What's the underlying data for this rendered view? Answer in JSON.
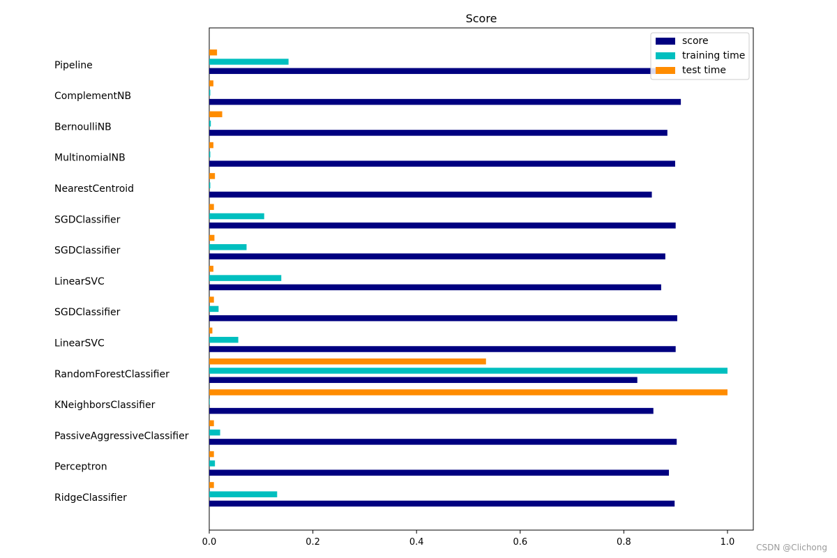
{
  "chart_data": {
    "type": "bar",
    "orientation": "horizontal",
    "title": "Score",
    "xlabel": "",
    "ylabel": "",
    "xlim": [
      0,
      1.05
    ],
    "xticks": [
      0.0,
      0.2,
      0.4,
      0.6,
      0.8,
      1.0
    ],
    "xtick_labels": [
      "0.0",
      "0.2",
      "0.4",
      "0.6",
      "0.8",
      "1.0"
    ],
    "grid": false,
    "legend_position": "top-right",
    "categories": [
      "RidgeClassifier",
      "Perceptron",
      "PassiveAggressiveClassifier",
      "KNeighborsClassifier",
      "RandomForestClassifier",
      "LinearSVC",
      "SGDClassifier",
      "LinearSVC",
      "SGDClassifier",
      "SGDClassifier",
      "NearestCentroid",
      "MultinomialNB",
      "BernoulliNB",
      "ComplementNB",
      "Pipeline"
    ],
    "series": [
      {
        "name": "score",
        "color": "#000080",
        "values": [
          0.898,
          0.887,
          0.902,
          0.857,
          0.826,
          0.9,
          0.903,
          0.872,
          0.88,
          0.9,
          0.854,
          0.899,
          0.884,
          0.91,
          0.88
        ]
      },
      {
        "name": "training time",
        "color": "#00bfbf",
        "values": [
          0.131,
          0.011,
          0.021,
          0.001,
          1.0,
          0.056,
          0.018,
          0.139,
          0.072,
          0.106,
          0.002,
          0.002,
          0.003,
          0.002,
          0.153
        ]
      },
      {
        "name": "test time",
        "color": "#ff8c00",
        "values": [
          0.009,
          0.009,
          0.009,
          1.0,
          0.534,
          0.006,
          0.009,
          0.008,
          0.01,
          0.009,
          0.011,
          0.008,
          0.025,
          0.008,
          0.015
        ]
      }
    ]
  },
  "watermark": "CSDN @Clichong"
}
